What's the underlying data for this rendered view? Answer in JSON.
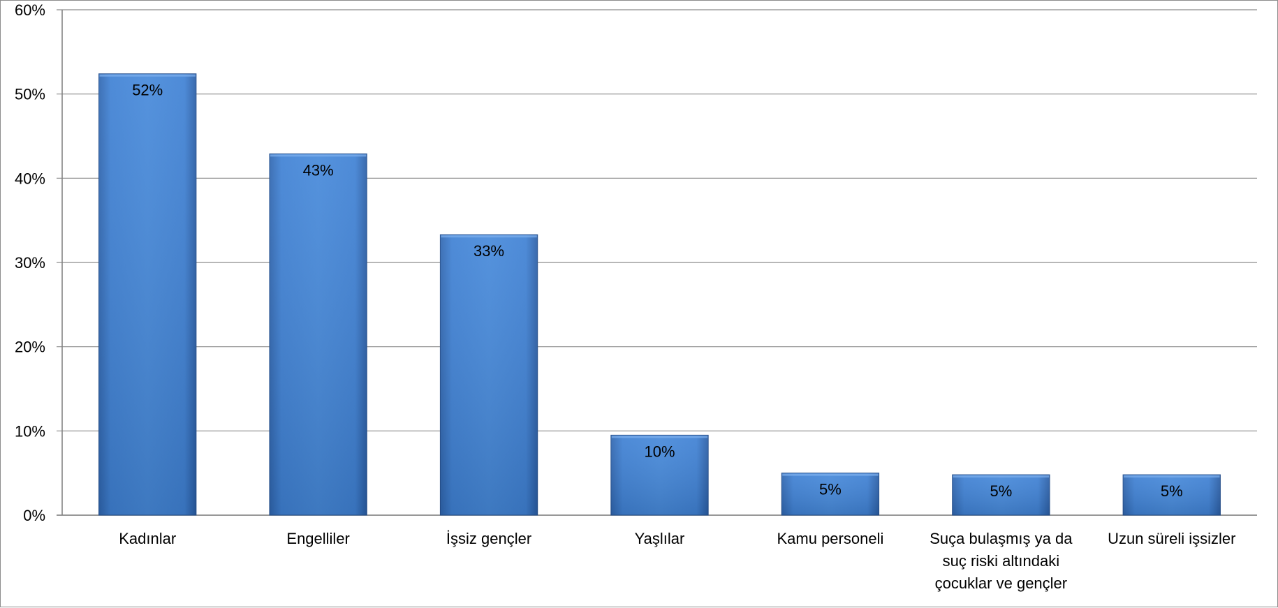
{
  "chart_data": {
    "type": "bar",
    "categories": [
      [
        "Kadınlar"
      ],
      [
        "Engelliler"
      ],
      [
        "İşsiz gençler"
      ],
      [
        "Yaşlılar"
      ],
      [
        "Kamu personeli"
      ],
      [
        "Suça bulaşmış ya da",
        "suç riski altındaki",
        "çocuklar ve gençler"
      ],
      [
        "Uzun süreli işsizler"
      ]
    ],
    "values": [
      52.4,
      42.9,
      33.3,
      9.5,
      5.0,
      4.8,
      4.8
    ],
    "data_labels": [
      "52%",
      "43%",
      "33%",
      "10%",
      "5%",
      "5%",
      "5%"
    ],
    "ylim": [
      0,
      60
    ],
    "yticks": [
      0,
      10,
      20,
      30,
      40,
      50,
      60
    ],
    "ytick_labels": [
      "0%",
      "10%",
      "20%",
      "30%",
      "40%",
      "50%",
      "60%"
    ],
    "grid": true,
    "legend": "none",
    "colors": {
      "bar_light": "#5a9ae6",
      "bar_mid": "#3e7fd1",
      "bar_dark": "#2d64ad",
      "bar_edge": "#254f8c",
      "grid": "#8c8c8c",
      "axis": "#7f7f7f"
    }
  }
}
